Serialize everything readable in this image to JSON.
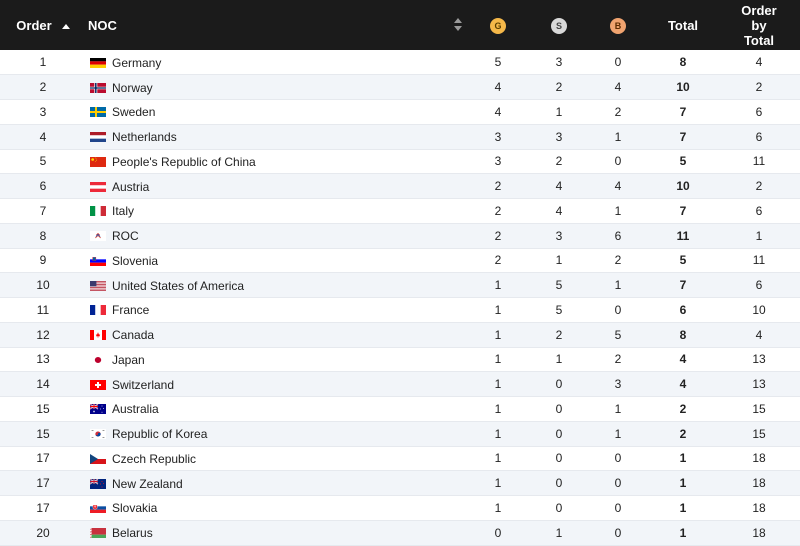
{
  "header": {
    "order": "Order",
    "noc": "NOC",
    "gold": "G",
    "silver": "S",
    "bronze": "B",
    "total": "Total",
    "order_by_total_1": "Order",
    "order_by_total_2": "by",
    "order_by_total_3": "Total"
  },
  "rows": [
    {
      "order": "1",
      "noc": "Germany",
      "flag": "flag-germany-icon",
      "g": "5",
      "s": "3",
      "b": "0",
      "total": "8",
      "obt": "4"
    },
    {
      "order": "2",
      "noc": "Norway",
      "flag": "flag-norway-icon",
      "g": "4",
      "s": "2",
      "b": "4",
      "total": "10",
      "obt": "2"
    },
    {
      "order": "3",
      "noc": "Sweden",
      "flag": "flag-sweden-icon",
      "g": "4",
      "s": "1",
      "b": "2",
      "total": "7",
      "obt": "6"
    },
    {
      "order": "4",
      "noc": "Netherlands",
      "flag": "flag-netherlands-icon",
      "g": "3",
      "s": "3",
      "b": "1",
      "total": "7",
      "obt": "6"
    },
    {
      "order": "5",
      "noc": "People's Republic of China",
      "flag": "flag-china-icon",
      "g": "3",
      "s": "2",
      "b": "0",
      "total": "5",
      "obt": "11"
    },
    {
      "order": "6",
      "noc": "Austria",
      "flag": "flag-austria-icon",
      "g": "2",
      "s": "4",
      "b": "4",
      "total": "10",
      "obt": "2"
    },
    {
      "order": "7",
      "noc": "Italy",
      "flag": "flag-italy-icon",
      "g": "2",
      "s": "4",
      "b": "1",
      "total": "7",
      "obt": "6"
    },
    {
      "order": "8",
      "noc": "ROC",
      "flag": "flag-roc-icon",
      "g": "2",
      "s": "3",
      "b": "6",
      "total": "11",
      "obt": "1"
    },
    {
      "order": "9",
      "noc": "Slovenia",
      "flag": "flag-slovenia-icon",
      "g": "2",
      "s": "1",
      "b": "2",
      "total": "5",
      "obt": "11"
    },
    {
      "order": "10",
      "noc": "United States of America",
      "flag": "flag-usa-icon",
      "g": "1",
      "s": "5",
      "b": "1",
      "total": "7",
      "obt": "6"
    },
    {
      "order": "11",
      "noc": "France",
      "flag": "flag-france-icon",
      "g": "1",
      "s": "5",
      "b": "0",
      "total": "6",
      "obt": "10"
    },
    {
      "order": "12",
      "noc": "Canada",
      "flag": "flag-canada-icon",
      "g": "1",
      "s": "2",
      "b": "5",
      "total": "8",
      "obt": "4"
    },
    {
      "order": "13",
      "noc": "Japan",
      "flag": "flag-japan-icon",
      "g": "1",
      "s": "1",
      "b": "2",
      "total": "4",
      "obt": "13"
    },
    {
      "order": "14",
      "noc": "Switzerland",
      "flag": "flag-switzerland-icon",
      "g": "1",
      "s": "0",
      "b": "3",
      "total": "4",
      "obt": "13"
    },
    {
      "order": "15",
      "noc": "Australia",
      "flag": "flag-australia-icon",
      "g": "1",
      "s": "0",
      "b": "1",
      "total": "2",
      "obt": "15"
    },
    {
      "order": "15",
      "noc": "Republic of Korea",
      "flag": "flag-korea-icon",
      "g": "1",
      "s": "0",
      "b": "1",
      "total": "2",
      "obt": "15"
    },
    {
      "order": "17",
      "noc": "Czech Republic",
      "flag": "flag-czech-icon",
      "g": "1",
      "s": "0",
      "b": "0",
      "total": "1",
      "obt": "18"
    },
    {
      "order": "17",
      "noc": "New Zealand",
      "flag": "flag-new-zealand-icon",
      "g": "1",
      "s": "0",
      "b": "0",
      "total": "1",
      "obt": "18"
    },
    {
      "order": "17",
      "noc": "Slovakia",
      "flag": "flag-slovakia-icon",
      "g": "1",
      "s": "0",
      "b": "0",
      "total": "1",
      "obt": "18"
    },
    {
      "order": "20",
      "noc": "Belarus",
      "flag": "flag-belarus-icon",
      "g": "0",
      "s": "1",
      "b": "0",
      "total": "1",
      "obt": "18"
    }
  ]
}
